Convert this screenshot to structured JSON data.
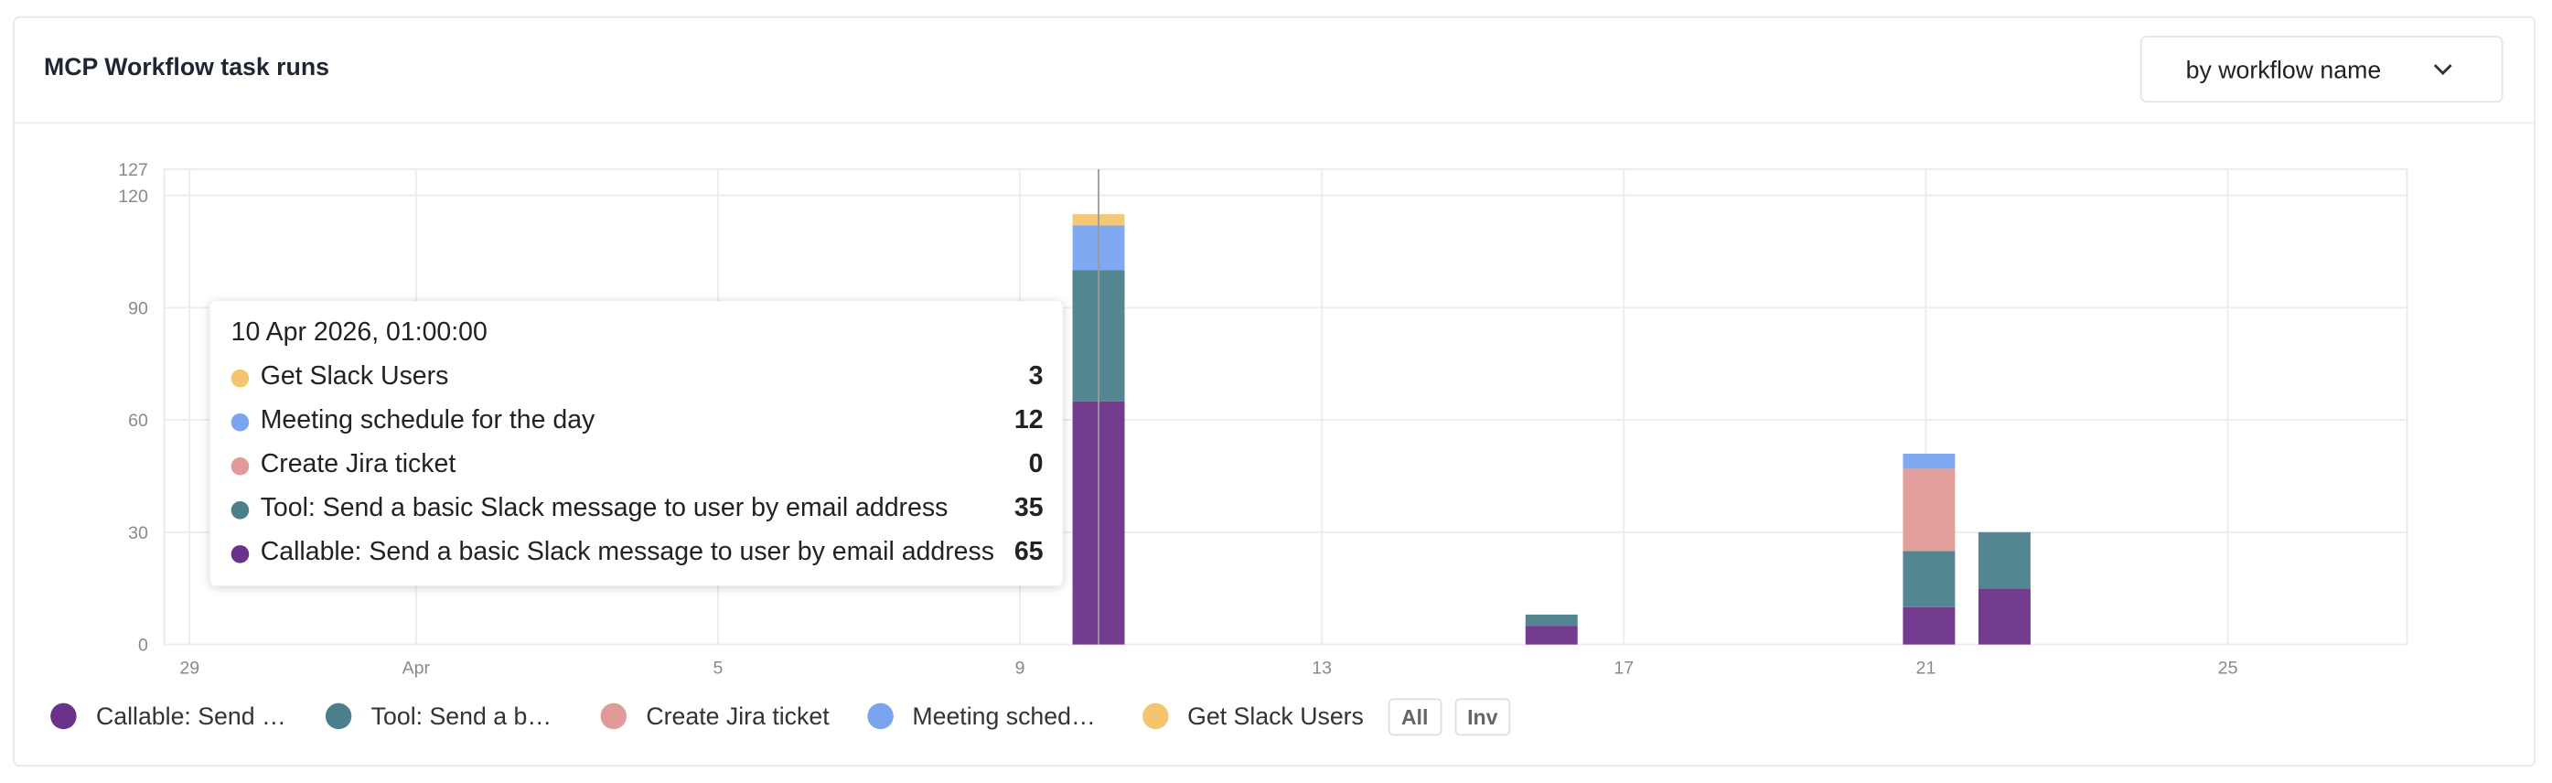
{
  "chart_data": {
    "type": "bar",
    "stacked": true,
    "title": "MCP Workflow task runs",
    "x": [
      "2026-04-10T01:00",
      "2026-04-16T01:00",
      "2026-04-21T01:00",
      "2026-04-22T01:00"
    ],
    "xlim": [
      "2026-03-28T16:00",
      "2026-04-27T09:00"
    ],
    "xticks": [
      {
        "value": "2026-03-29T00:00",
        "label": "29"
      },
      {
        "value": "2026-04-01T00:00",
        "label": "Apr"
      },
      {
        "value": "2026-04-05T00:00",
        "label": "5"
      },
      {
        "value": "2026-04-09T00:00",
        "label": "9"
      },
      {
        "value": "2026-04-13T00:00",
        "label": "13"
      },
      {
        "value": "2026-04-17T00:00",
        "label": "17"
      },
      {
        "value": "2026-04-21T00:00",
        "label": "21"
      },
      {
        "value": "2026-04-25T00:00",
        "label": "25"
      }
    ],
    "ylim": [
      0,
      127
    ],
    "yticks": [
      0,
      30,
      60,
      90,
      120,
      127
    ],
    "grid": true,
    "series": [
      {
        "name": "Callable: Send a basic Slack message to user by email address",
        "color": "#6b3289",
        "values": [
          65,
          5,
          10,
          15
        ]
      },
      {
        "name": "Tool: Send a basic Slack message to user by email address",
        "color": "#4b7f8c",
        "values": [
          35,
          3,
          15,
          15
        ]
      },
      {
        "name": "Create Jira ticket",
        "color": "#e09a97",
        "values": [
          0,
          0,
          22,
          0
        ]
      },
      {
        "name": "Meeting schedule for the day",
        "color": "#7aa4f0",
        "values": [
          12,
          0,
          4,
          0
        ]
      },
      {
        "name": "Get Slack Users",
        "color": "#f3c56e",
        "values": [
          3,
          0,
          0,
          0
        ]
      }
    ],
    "tooltip": {
      "title": "10 Apr 2026, 01:00:00"
    }
  },
  "controls": {
    "group_by": "by workflow name",
    "all": "All",
    "inv": "Inv"
  }
}
